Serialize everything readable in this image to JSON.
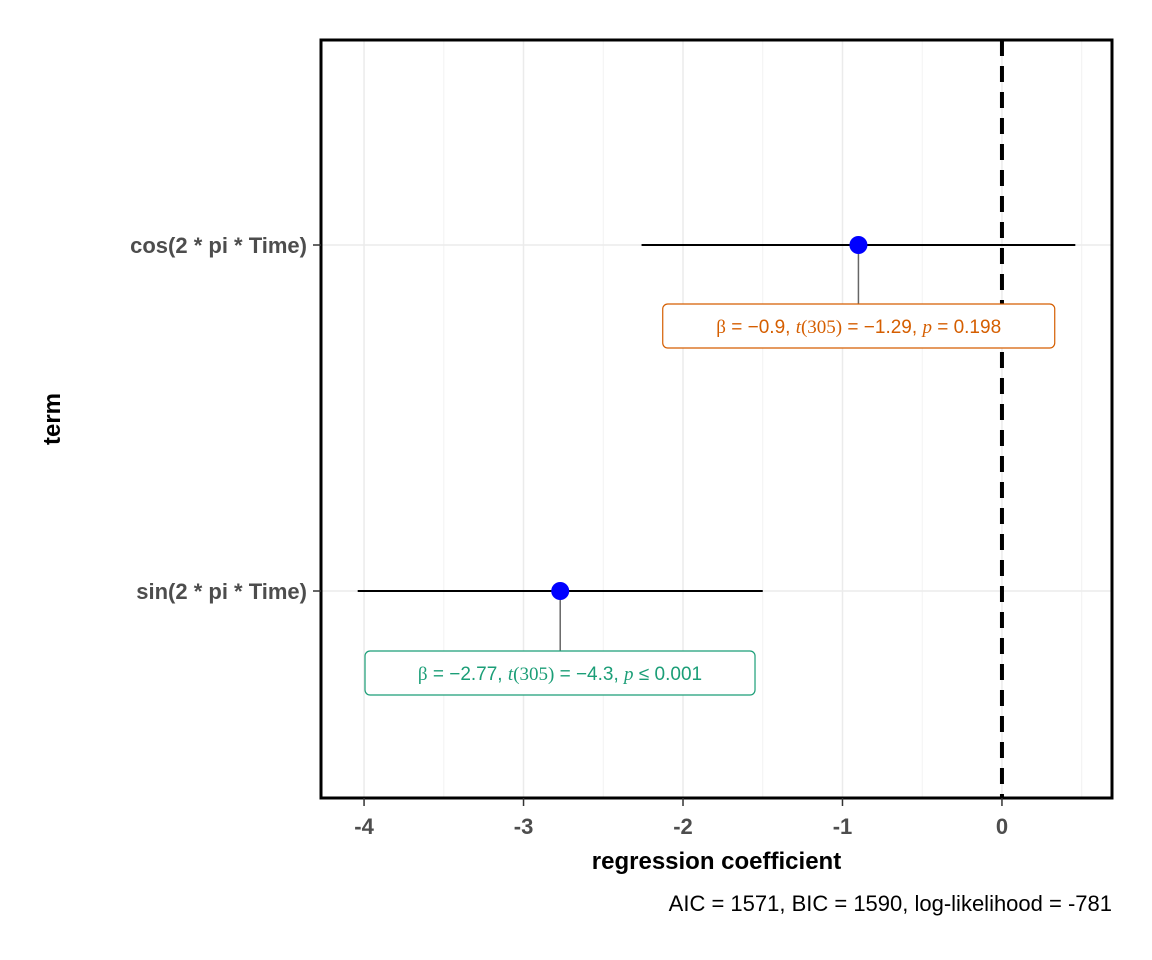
{
  "chart_data": {
    "type": "scatter",
    "title": "",
    "xlabel": "regression coefficient",
    "ylabel": "term",
    "xlim": [
      -4.27,
      0.69
    ],
    "x_ticks": [
      -4,
      -3,
      -2,
      -1,
      0
    ],
    "x_tick_labels": [
      "-4",
      "-3",
      "-2",
      "-1",
      "0"
    ],
    "reference_line": 0,
    "grid": true,
    "caption": "AIC = 1571, BIC = 1590, log-likelihood = -781",
    "terms": [
      {
        "term": "cos(2 * pi * Time)",
        "estimate": -0.9,
        "conf_low": -2.26,
        "conf_high": 0.46,
        "label": {
          "beta": "−0.9",
          "df": "305",
          "t": "−1.29",
          "p_op": "=",
          "p": "0.198"
        },
        "label_color": "#d55e00"
      },
      {
        "term": "sin(2 * pi * Time)",
        "estimate": -2.77,
        "conf_low": -4.04,
        "conf_high": -1.5,
        "label": {
          "beta": "−2.77",
          "df": "305",
          "t": "−4.3",
          "p_op": "≤",
          "p": "0.001"
        },
        "label_color": "#1b9e77"
      }
    ],
    "point_color": "#0000ff"
  }
}
